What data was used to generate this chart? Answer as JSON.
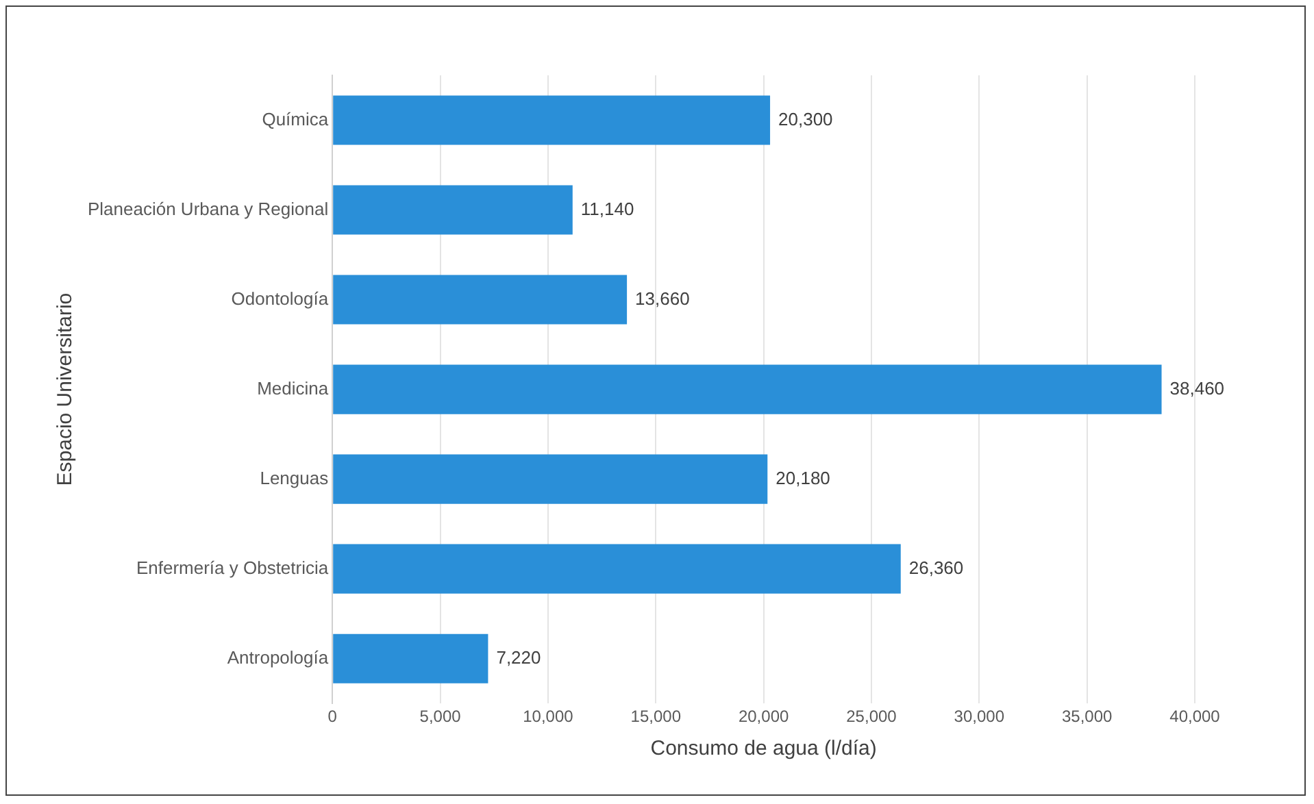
{
  "chart_data": {
    "type": "bar",
    "orientation": "horizontal",
    "categories": [
      "Química",
      "Planeación Urbana y Regional",
      "Odontología",
      "Medicina",
      "Lenguas",
      "Enfermería y Obstetricia",
      "Antropología"
    ],
    "values": [
      20300,
      11140,
      13660,
      38460,
      20180,
      26360,
      7220
    ],
    "value_labels": [
      "20,300",
      "11,140",
      "13,660",
      "38,460",
      "20,180",
      "26,360",
      "7,220"
    ],
    "color": "#2a8fd8",
    "xlabel": "Consumo de agua (l/día)",
    "ylabel": "Espacio Universitario",
    "xlim": [
      0,
      40000
    ],
    "xticks": [
      0,
      {
        "value": 5000,
        "label": "5,000"
      },
      {
        "value": 10000,
        "label": "10,000"
      },
      {
        "value": 15000,
        "label": "15,000"
      },
      {
        "value": 20000,
        "label": "20,000"
      },
      {
        "value": 25000,
        "label": "25,000"
      },
      {
        "value": 30000,
        "label": "30,000"
      },
      {
        "value": 35000,
        "label": "35,000"
      },
      {
        "value": 40000,
        "label": "40,000"
      }
    ],
    "grid": "x",
    "legend": false
  }
}
